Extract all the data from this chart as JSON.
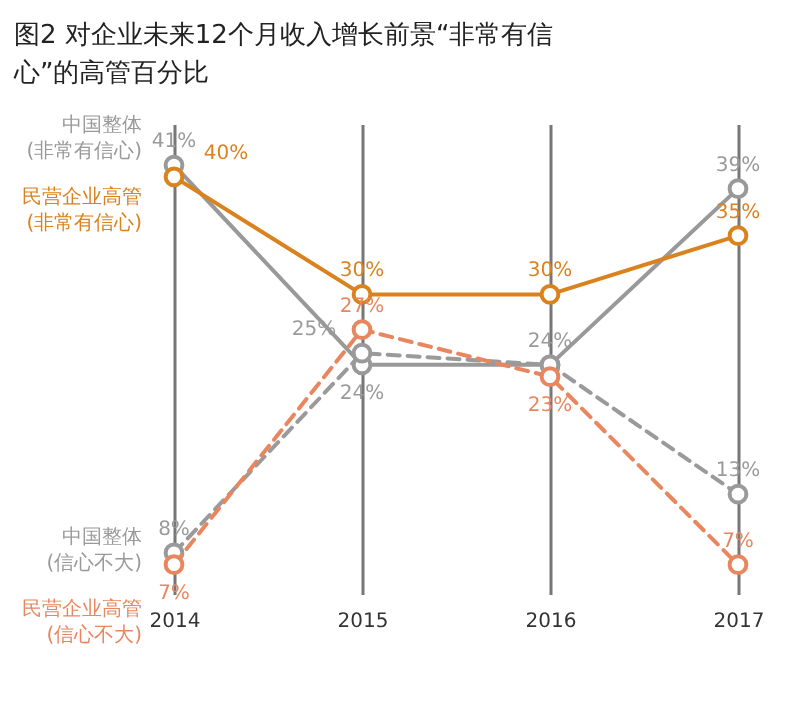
{
  "chart_data": {
    "type": "line",
    "title": "图2 对企业未来12个月收入增长前景“非常有信心”的高管百分比",
    "categories": [
      "2014",
      "2015",
      "2016",
      "2017"
    ],
    "grid": "x",
    "marker": "circle",
    "legend": "left",
    "series": [
      {
        "name": "中国整体 (非常有信心)",
        "color": "#999999",
        "line_style": "solid",
        "values": [
          41,
          24,
          24,
          39
        ],
        "value_labels": [
          "41%",
          "24%",
          "24%",
          "39%"
        ]
      },
      {
        "name": "民营企业高管 (非常有信心)",
        "color": "#d9821e",
        "line_style": "solid",
        "values": [
          40,
          30,
          30,
          35
        ],
        "value_labels": [
          "40%",
          "30%",
          "30%",
          "35%"
        ]
      },
      {
        "name": "中国整体 (信心不大)",
        "color": "#9a9a9a",
        "line_style": "dashed",
        "values": [
          8,
          25,
          24,
          13
        ],
        "value_labels": [
          "8%",
          "25%",
          null,
          "13%"
        ]
      },
      {
        "name": "民营企业高管 (信心不大)",
        "color": "#e8875f",
        "line_style": "dashed",
        "values": [
          7,
          27,
          23,
          7
        ],
        "value_labels": [
          "7%",
          "27%",
          "23%",
          "7%"
        ]
      }
    ]
  }
}
